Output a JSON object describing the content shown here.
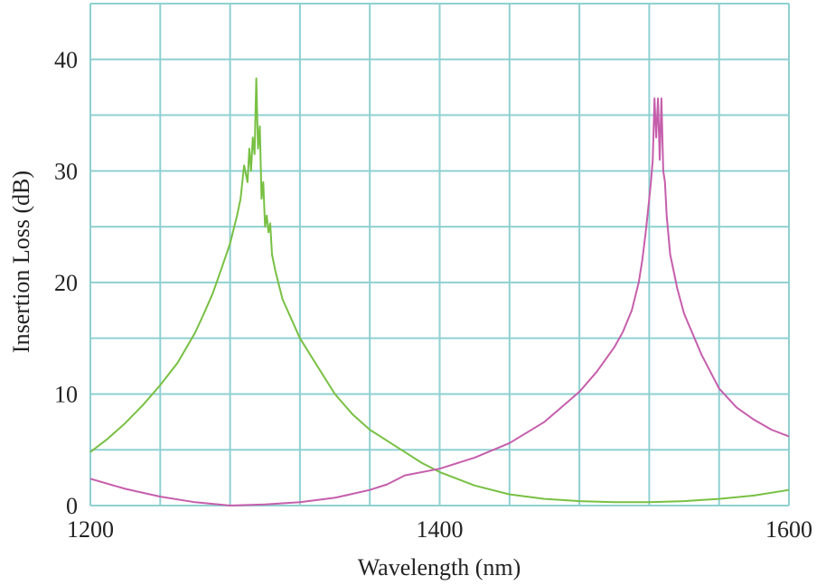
{
  "chart_data": {
    "type": "line",
    "title": "",
    "xlabel": "Wavelength (nm)",
    "ylabel": "Insertion Loss (dB)",
    "xlim": [
      1200,
      1600
    ],
    "ylim": [
      0,
      45
    ],
    "x_ticks": [
      1200,
      1400,
      1600
    ],
    "y_ticks": [
      0,
      10,
      20,
      30,
      40
    ],
    "x_grid_step": 40,
    "y_grid_step": 5,
    "grid": true,
    "legend": "none",
    "colors": {
      "grid": "#8fd0d2",
      "series_1": "#78c043",
      "series_2": "#c65eac"
    },
    "series": [
      {
        "color": "#78c043",
        "x": [
          1200,
          1210,
          1220,
          1230,
          1240,
          1250,
          1260,
          1265,
          1270,
          1275,
          1280,
          1284,
          1286,
          1288,
          1290,
          1291,
          1292,
          1293,
          1294,
          1295,
          1296,
          1297,
          1298,
          1299,
          1300,
          1301,
          1302,
          1303,
          1304,
          1306,
          1310,
          1320,
          1330,
          1340,
          1350,
          1360,
          1370,
          1380,
          1390,
          1400,
          1420,
          1440,
          1460,
          1480,
          1500,
          1520,
          1540,
          1560,
          1580,
          1600
        ],
        "y": [
          4.8,
          6.0,
          7.4,
          9.0,
          10.8,
          12.8,
          15.5,
          17.2,
          19.0,
          21.2,
          23.5,
          26.0,
          27.5,
          30.5,
          29.0,
          32.0,
          30.0,
          33.0,
          31.5,
          38.3,
          32.0,
          34.0,
          27.5,
          29.0,
          25.0,
          26.0,
          24.5,
          25.3,
          22.5,
          21.0,
          18.5,
          15.0,
          12.5,
          10.0,
          8.2,
          6.8,
          5.8,
          4.8,
          3.8,
          3.0,
          1.8,
          1.0,
          0.6,
          0.4,
          0.3,
          0.3,
          0.4,
          0.6,
          0.9,
          1.4
        ]
      },
      {
        "color": "#c65eac",
        "x": [
          1200,
          1220,
          1240,
          1260,
          1280,
          1300,
          1320,
          1340,
          1360,
          1370,
          1380,
          1400,
          1420,
          1440,
          1460,
          1480,
          1490,
          1500,
          1505,
          1510,
          1514,
          1516,
          1518,
          1520,
          1521,
          1522,
          1523,
          1524,
          1525,
          1526,
          1527,
          1528,
          1529,
          1530,
          1532,
          1534,
          1536,
          1540,
          1550,
          1560,
          1570,
          1580,
          1590,
          1600
        ],
        "y": [
          2.4,
          1.5,
          0.8,
          0.3,
          0.0,
          0.1,
          0.3,
          0.7,
          1.4,
          1.9,
          2.7,
          3.3,
          4.3,
          5.6,
          7.5,
          10.2,
          12.0,
          14.2,
          15.6,
          17.5,
          20.0,
          22.0,
          24.5,
          27.5,
          29.0,
          31.0,
          36.5,
          33.0,
          36.5,
          31.0,
          36.5,
          30.0,
          29.0,
          26.0,
          22.5,
          21.0,
          19.5,
          17.2,
          13.5,
          10.5,
          8.8,
          7.7,
          6.8,
          6.2
        ]
      }
    ]
  }
}
